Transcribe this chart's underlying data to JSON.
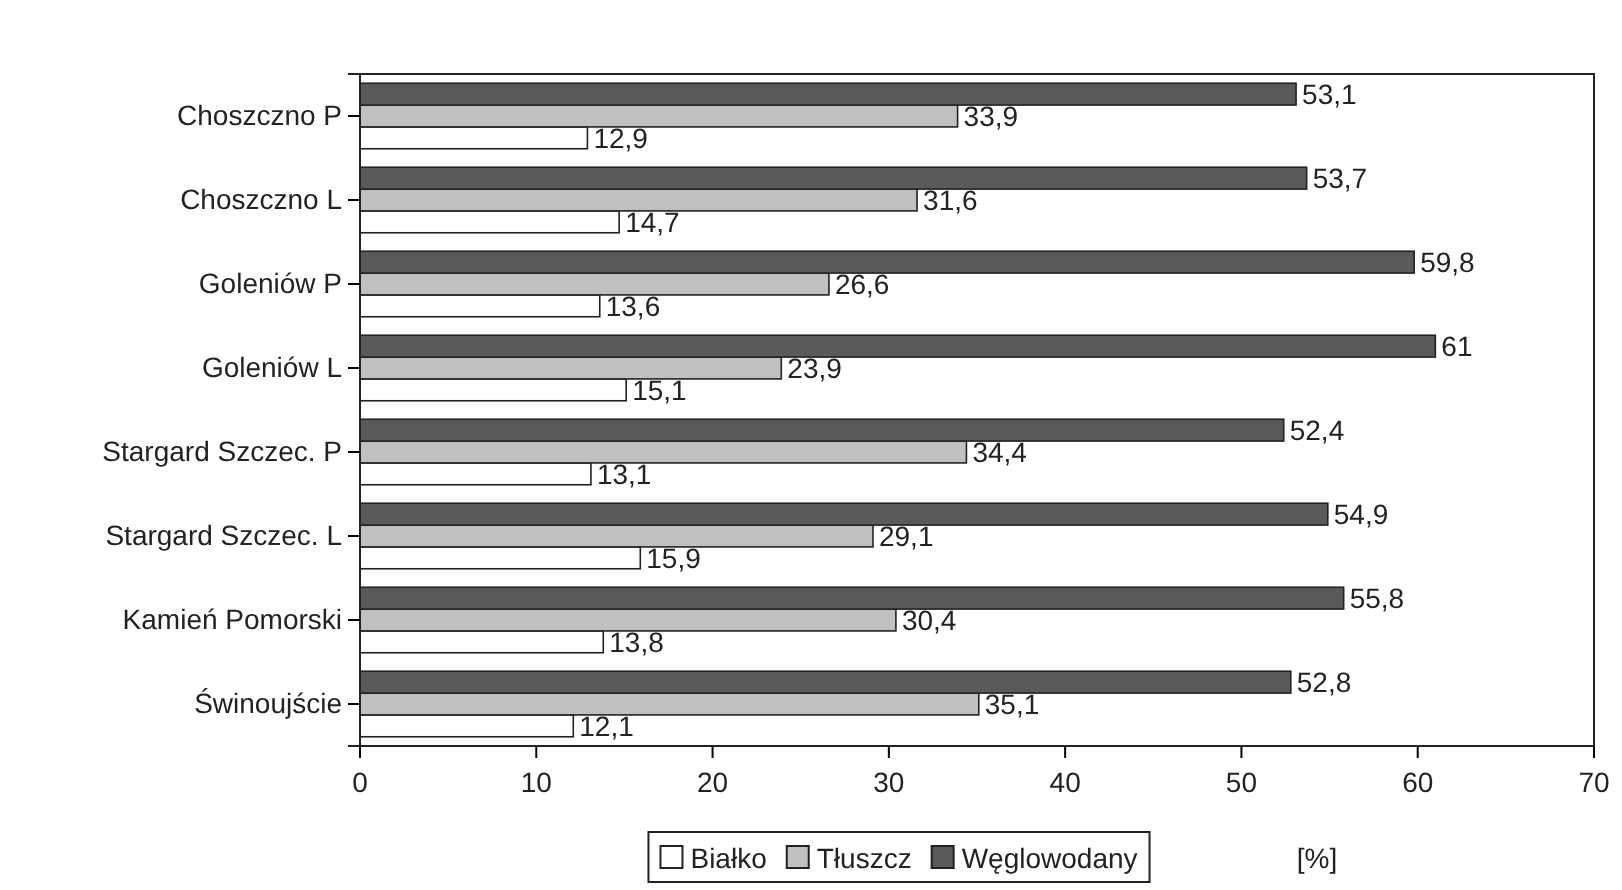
{
  "chart_data": {
    "type": "bar",
    "orientation": "horizontal",
    "xlabel": "[%]",
    "categories": [
      "Choszczno P",
      "Choszczno L",
      "Goleniów P",
      "Goleniów L",
      "Stargard Szczec. P",
      "Stargard Szczec. L",
      "Kamień Pomorski",
      "Świnoujście"
    ],
    "series": [
      {
        "name": "Białko",
        "color": "#ffffff",
        "values": [
          12.9,
          14.7,
          13.6,
          15.1,
          13.1,
          15.9,
          13.8,
          12.1
        ],
        "value_labels": [
          "12,9",
          "14,7",
          "13,6",
          "15,1",
          "13,1",
          "15,9",
          "13,8",
          "12,1"
        ]
      },
      {
        "name": "Tłuszcz",
        "color": "#c0c0c0",
        "values": [
          33.9,
          31.6,
          26.6,
          23.9,
          34.4,
          29.1,
          30.4,
          35.1
        ],
        "value_labels": [
          "33,9",
          "31,6",
          "26,6",
          "23,9",
          "34,4",
          "29,1",
          "30,4",
          "35,1"
        ]
      },
      {
        "name": "Węglowodany",
        "color": "#5a5a5a",
        "values": [
          53.1,
          53.7,
          59.8,
          61,
          52.4,
          54.9,
          55.8,
          52.8
        ],
        "value_labels": [
          "53,1",
          "53,7",
          "59,8",
          "61",
          "52,4",
          "54,9",
          "55,8",
          "52,8"
        ]
      }
    ],
    "xlim": [
      0,
      70
    ],
    "xticks": [
      0,
      10,
      20,
      30,
      40,
      50,
      60,
      70
    ],
    "grid": false,
    "legend": "bottom"
  }
}
